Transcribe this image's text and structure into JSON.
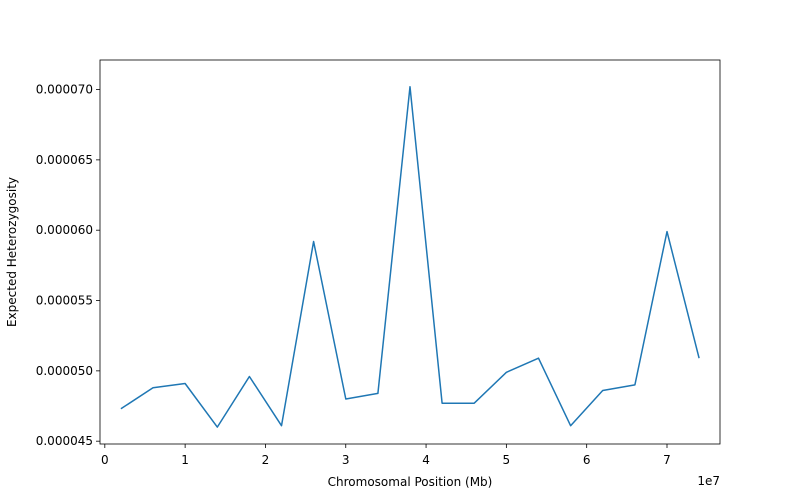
{
  "chart_data": {
    "type": "line",
    "xlabel": "Chromosomal Position (Mb)",
    "ylabel": "Expected Heterozygosity",
    "x_offset_label": "1e7",
    "xlim": [
      -600000.0,
      76600000.0
    ],
    "ylim": [
      4.48e-05,
      7.21e-05
    ],
    "grid": false,
    "line_color": "#1f77b4",
    "x_ticks": [
      0,
      10000000,
      20000000,
      30000000,
      40000000,
      50000000,
      60000000,
      70000000
    ],
    "x_tick_labels": [
      "0",
      "1",
      "2",
      "3",
      "4",
      "5",
      "6",
      "7"
    ],
    "y_ticks": [
      4.5e-05,
      5e-05,
      5.5e-05,
      6e-05,
      6.5e-05,
      7e-05
    ],
    "y_tick_labels": [
      "0.000045",
      "0.000050",
      "0.000055",
      "0.000060",
      "0.000065",
      "0.000070"
    ],
    "series": [
      {
        "x": [
          2000000,
          6000000,
          10000000,
          14000000,
          18000000,
          22000000,
          26000000,
          30000000,
          34000000,
          38000000,
          42000000,
          46000000,
          50000000,
          54000000,
          58000000,
          62000000,
          66000000,
          70000000,
          74000000
        ],
        "values": [
          4.73e-05,
          4.88e-05,
          4.91e-05,
          4.6e-05,
          4.96e-05,
          4.61e-05,
          5.92e-05,
          4.8e-05,
          4.84e-05,
          7.02e-05,
          4.77e-05,
          4.77e-05,
          4.99e-05,
          5.09e-05,
          4.61e-05,
          4.86e-05,
          4.9e-05,
          5.99e-05,
          5.09e-05
        ]
      }
    ]
  }
}
